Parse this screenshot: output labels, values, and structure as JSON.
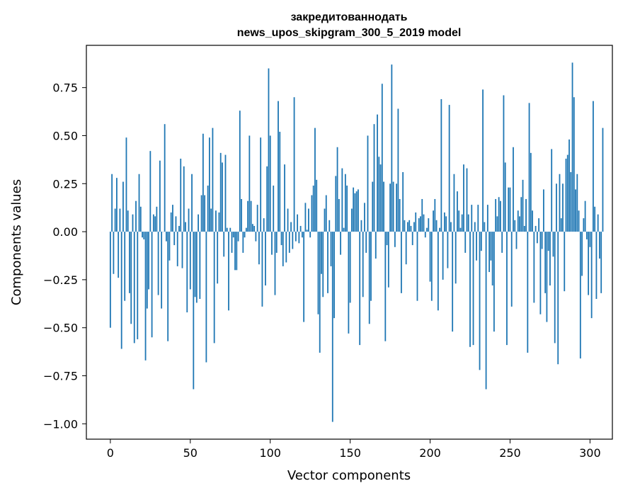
{
  "chart_data": {
    "type": "bar",
    "title": "закредитованнодать",
    "subtitle": "news_upos_skipgram_300_5_2019 model",
    "xlabel": "Vector components",
    "ylabel": "Components values",
    "xlim": [
      -15,
      314
    ],
    "ylim": [
      -1.08,
      0.97
    ],
    "xticks": [
      0,
      50,
      100,
      150,
      200,
      250,
      300
    ],
    "yticks": [
      0.75,
      0.5,
      0.25,
      0.0,
      -0.25,
      -0.5,
      -0.75,
      -1.0
    ],
    "ytick_labels": [
      "0.75",
      "0.50",
      "0.25",
      "0.00",
      "−0.25",
      "−0.50",
      "−0.75",
      "−1.00"
    ],
    "grid": false,
    "bar_color": "#1f77b4",
    "values": [
      -0.5,
      0.3,
      -0.22,
      0.12,
      0.28,
      -0.24,
      0.12,
      -0.61,
      0.26,
      -0.36,
      0.49,
      0.11,
      -0.32,
      -0.48,
      0.09,
      -0.58,
      0.16,
      -0.56,
      0.3,
      0.13,
      -0.03,
      -0.04,
      -0.67,
      -0.4,
      -0.3,
      0.42,
      -0.55,
      0.09,
      0.08,
      0.13,
      -0.33,
      0.37,
      -0.4,
      0.0,
      0.56,
      -0.05,
      -0.57,
      -0.15,
      0.1,
      0.14,
      -0.07,
      0.08,
      -0.18,
      0.03,
      0.38,
      -0.19,
      0.34,
      0.05,
      -0.42,
      0.12,
      -0.3,
      0.3,
      -0.82,
      -0.34,
      -0.37,
      0.09,
      -0.35,
      0.19,
      0.51,
      0.19,
      -0.68,
      0.24,
      0.49,
      0.12,
      0.54,
      -0.58,
      0.11,
      -0.27,
      0.1,
      0.41,
      0.36,
      -0.13,
      0.4,
      0.02,
      -0.41,
      0.02,
      -0.11,
      -0.03,
      -0.2,
      -0.2,
      -0.05,
      0.63,
      0.17,
      -0.11,
      -0.03,
      0.02,
      0.16,
      0.5,
      0.16,
      0.04,
      0.03,
      -0.05,
      0.14,
      -0.17,
      0.49,
      -0.39,
      0.07,
      -0.28,
      0.34,
      0.85,
      0.5,
      -0.12,
      0.24,
      -0.33,
      -0.11,
      0.68,
      0.52,
      -0.07,
      -0.18,
      0.35,
      -0.16,
      0.12,
      -0.11,
      0.05,
      -0.09,
      0.7,
      -0.05,
      0.09,
      -0.06,
      0.03,
      -0.03,
      -0.47,
      0.15,
      0.01,
      0.12,
      -0.03,
      0.19,
      0.24,
      0.54,
      0.27,
      -0.43,
      -0.63,
      -0.22,
      -0.34,
      0.12,
      0.19,
      -0.32,
      0.06,
      -0.18,
      -0.99,
      -0.45,
      0.29,
      0.44,
      0.17,
      -0.12,
      0.33,
      0.02,
      0.3,
      0.24,
      -0.53,
      -0.37,
      0.12,
      0.23,
      0.2,
      0.21,
      0.22,
      -0.59,
      0.06,
      -0.34,
      0.15,
      -0.11,
      0.5,
      -0.48,
      -0.36,
      0.26,
      0.56,
      -0.14,
      0.61,
      0.39,
      0.35,
      0.77,
      0.26,
      -0.57,
      -0.07,
      -0.29,
      0.25,
      0.87,
      0.26,
      -0.08,
      0.25,
      0.64,
      0.17,
      -0.32,
      0.31,
      0.06,
      -0.17,
      0.05,
      0.06,
      0.03,
      -0.07,
      0.05,
      0.1,
      -0.36,
      0.07,
      0.08,
      0.17,
      0.09,
      -0.03,
      0.02,
      0.07,
      -0.26,
      -0.36,
      0.11,
      0.17,
      0.06,
      -0.41,
      0.02,
      0.69,
      -0.25,
      0.1,
      0.08,
      -0.19,
      0.66,
      0.05,
      -0.52,
      0.3,
      -0.27,
      0.21,
      0.11,
      0.02,
      0.09,
      0.35,
      -0.11,
      0.33,
      0.09,
      -0.6,
      0.14,
      -0.59,
      0.05,
      -0.15,
      0.14,
      -0.72,
      -0.1,
      0.74,
      0.05,
      -0.82,
      0.14,
      -0.21,
      -0.15,
      -0.28,
      -0.52,
      0.17,
      0.08,
      0.18,
      0.16,
      -0.11,
      0.71,
      0.36,
      -0.59,
      0.23,
      0.23,
      -0.39,
      0.44,
      0.06,
      -0.09,
      0.11,
      0.08,
      0.18,
      0.27,
      0.03,
      0.17,
      -0.63,
      0.67,
      0.41,
      0.11,
      -0.37,
      0.03,
      -0.06,
      0.07,
      -0.43,
      -0.09,
      0.22,
      -0.32,
      -0.47,
      -0.1,
      -0.28,
      0.43,
      -0.13,
      -0.58,
      0.25,
      -0.69,
      0.3,
      0.07,
      0.25,
      -0.31,
      0.38,
      0.4,
      0.48,
      0.31,
      0.88,
      0.7,
      0.22,
      0.3,
      0.11,
      -0.66,
      -0.23,
      0.07,
      0.16,
      -0.04,
      -0.33,
      -0.08,
      -0.45,
      0.68,
      0.13,
      -0.35,
      0.09,
      -0.14,
      -0.32,
      0.54
    ]
  }
}
